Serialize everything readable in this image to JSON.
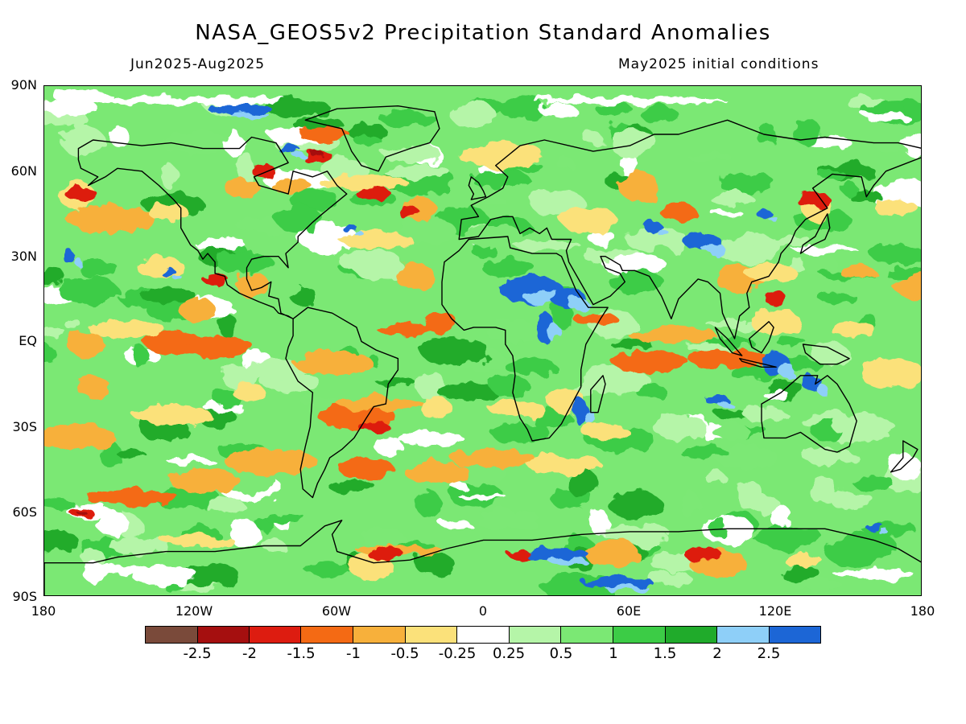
{
  "title": "NASA_GEOS5v2 Precipitation Standard Anomalies",
  "period": "Jun2025-Aug2025",
  "init": "May2025 initial conditions",
  "lat_ticks": [
    "90N",
    "60N",
    "30N",
    "EQ",
    "30S",
    "60S",
    "90S"
  ],
  "lon_ticks": [
    "180",
    "120W",
    "60W",
    "0",
    "60E",
    "120E",
    "180"
  ],
  "colorbar": {
    "colors": [
      "#7a4a3a",
      "#a50f0f",
      "#dd1c10",
      "#f46a14",
      "#f7b03b",
      "#fbe17a",
      "#ffffff",
      "#b5f5a8",
      "#7be874",
      "#3ccc46",
      "#20ab2b",
      "#8ecff8",
      "#1c66d6"
    ],
    "labels": [
      "-2.5",
      "-2",
      "-1.5",
      "-1",
      "-0.5",
      "-0.25",
      "0.25",
      "0.5",
      "1",
      "1.5",
      "2",
      "2.5"
    ]
  }
}
